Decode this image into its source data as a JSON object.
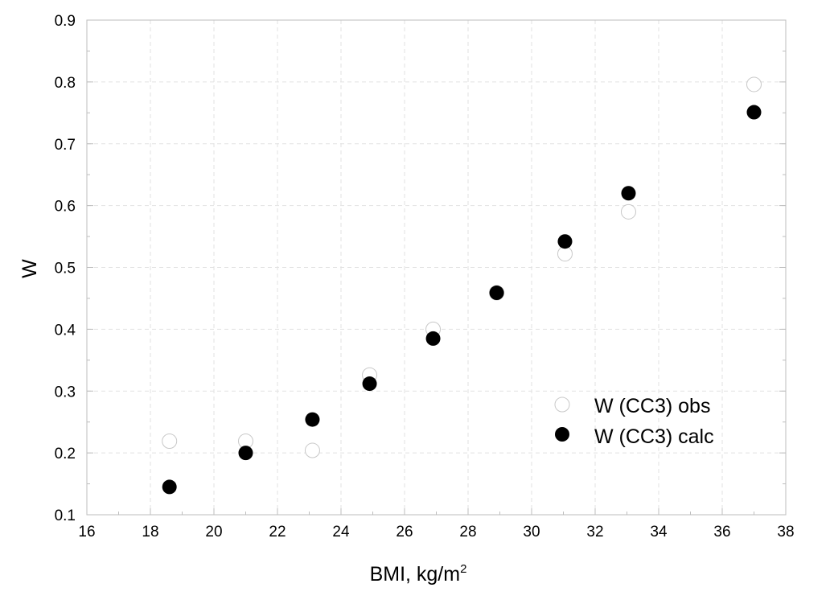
{
  "chart_data": {
    "type": "scatter",
    "title": "",
    "xlabel": "BMI, kg/m",
    "xlabel_superscript": "2",
    "ylabel": "W",
    "xlim": [
      16,
      38
    ],
    "ylim": [
      0.1,
      0.9
    ],
    "xticks": [
      16,
      18,
      20,
      22,
      24,
      26,
      28,
      30,
      32,
      34,
      36,
      38
    ],
    "yticks": [
      0.1,
      0.2,
      0.3,
      0.4,
      0.5,
      0.6,
      0.7,
      0.8,
      0.9
    ],
    "xtick_labels": [
      "16",
      "18",
      "20",
      "22",
      "24",
      "26",
      "28",
      "30",
      "32",
      "34",
      "36",
      "38"
    ],
    "ytick_labels": [
      "0.1",
      "0.2",
      "0.3",
      "0.4",
      "0.5",
      "0.6",
      "0.7",
      "0.8",
      "0.9"
    ],
    "grid": true,
    "legend_position": "lower-right",
    "series": [
      {
        "name": "W (CC3) obs",
        "marker": "open-circle",
        "color": "#c8c8c8",
        "x": [
          18.6,
          21.0,
          23.1,
          24.9,
          26.9,
          28.9,
          31.05,
          33.05,
          37.0
        ],
        "y": [
          0.219,
          0.219,
          0.204,
          0.326,
          0.4,
          0.459,
          0.522,
          0.59,
          0.796
        ]
      },
      {
        "name": "W (CC3) calc",
        "marker": "filled-circle",
        "color": "#000000",
        "x": [
          18.6,
          21.0,
          23.1,
          24.9,
          26.9,
          28.9,
          31.05,
          33.05,
          37.0
        ],
        "y": [
          0.145,
          0.2,
          0.254,
          0.312,
          0.385,
          0.459,
          0.542,
          0.62,
          0.751
        ]
      }
    ]
  }
}
